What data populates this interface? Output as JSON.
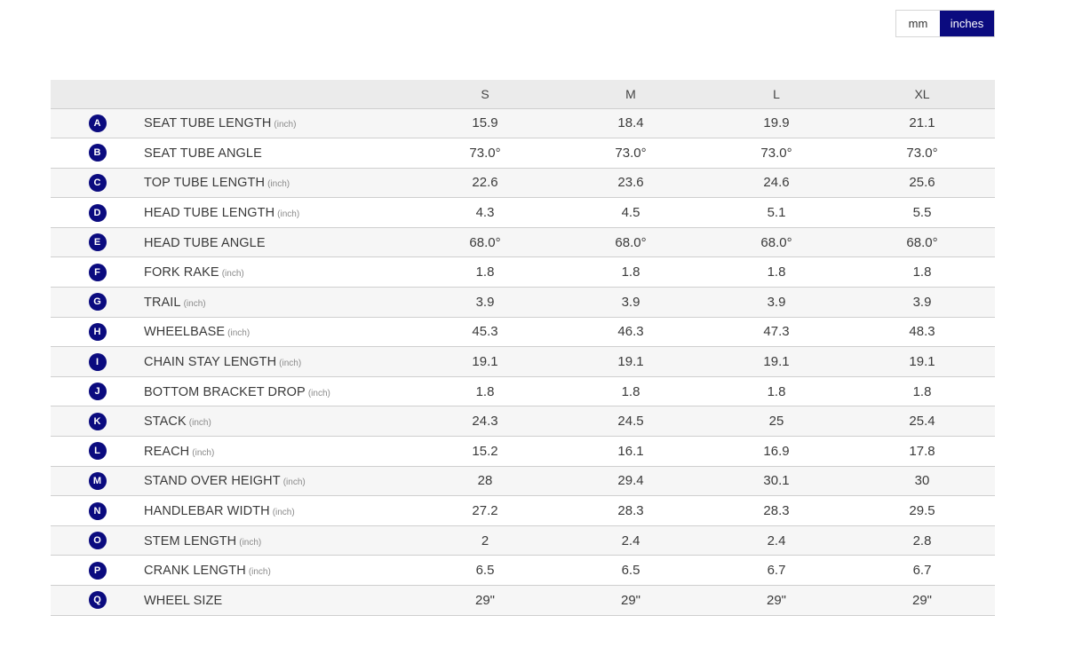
{
  "unit_toggle": {
    "mm_label": "mm",
    "inches_label": "inches",
    "selected": "inches"
  },
  "colors": {
    "accent": "#0b0b7f",
    "header_bg": "#ebebeb",
    "row_alt_bg": "#f6f6f6"
  },
  "table": {
    "columns": [
      "S",
      "M",
      "L",
      "XL"
    ],
    "rows": [
      {
        "letter": "A",
        "label": "SEAT TUBE LENGTH",
        "unit": "(inch)",
        "values": [
          "15.9",
          "18.4",
          "19.9",
          "21.1"
        ]
      },
      {
        "letter": "B",
        "label": "SEAT TUBE ANGLE",
        "unit": "",
        "values": [
          "73.0°",
          "73.0°",
          "73.0°",
          "73.0°"
        ]
      },
      {
        "letter": "C",
        "label": "TOP TUBE LENGTH",
        "unit": "(inch)",
        "values": [
          "22.6",
          "23.6",
          "24.6",
          "25.6"
        ]
      },
      {
        "letter": "D",
        "label": "HEAD TUBE LENGTH",
        "unit": "(inch)",
        "values": [
          "4.3",
          "4.5",
          "5.1",
          "5.5"
        ]
      },
      {
        "letter": "E",
        "label": "HEAD TUBE ANGLE",
        "unit": "",
        "values": [
          "68.0°",
          "68.0°",
          "68.0°",
          "68.0°"
        ]
      },
      {
        "letter": "F",
        "label": "FORK RAKE",
        "unit": "(inch)",
        "values": [
          "1.8",
          "1.8",
          "1.8",
          "1.8"
        ]
      },
      {
        "letter": "G",
        "label": "TRAIL",
        "unit": "(inch)",
        "values": [
          "3.9",
          "3.9",
          "3.9",
          "3.9"
        ]
      },
      {
        "letter": "H",
        "label": "WHEELBASE",
        "unit": "(inch)",
        "values": [
          "45.3",
          "46.3",
          "47.3",
          "48.3"
        ]
      },
      {
        "letter": "I",
        "label": "CHAIN STAY LENGTH",
        "unit": "(inch)",
        "values": [
          "19.1",
          "19.1",
          "19.1",
          "19.1"
        ]
      },
      {
        "letter": "J",
        "label": "BOTTOM BRACKET DROP",
        "unit": "(inch)",
        "values": [
          "1.8",
          "1.8",
          "1.8",
          "1.8"
        ]
      },
      {
        "letter": "K",
        "label": "STACK",
        "unit": "(inch)",
        "values": [
          "24.3",
          "24.5",
          "25",
          "25.4"
        ]
      },
      {
        "letter": "L",
        "label": "REACH",
        "unit": "(inch)",
        "values": [
          "15.2",
          "16.1",
          "16.9",
          "17.8"
        ]
      },
      {
        "letter": "M",
        "label": "STAND OVER HEIGHT",
        "unit": "(inch)",
        "values": [
          "28",
          "29.4",
          "30.1",
          "30"
        ]
      },
      {
        "letter": "N",
        "label": "HANDLEBAR WIDTH",
        "unit": "(inch)",
        "values": [
          "27.2",
          "28.3",
          "28.3",
          "29.5"
        ]
      },
      {
        "letter": "O",
        "label": "STEM LENGTH",
        "unit": "(inch)",
        "values": [
          "2",
          "2.4",
          "2.4",
          "2.8"
        ]
      },
      {
        "letter": "P",
        "label": "CRANK LENGTH",
        "unit": "(inch)",
        "values": [
          "6.5",
          "6.5",
          "6.7",
          "6.7"
        ]
      },
      {
        "letter": "Q",
        "label": "WHEEL SIZE",
        "unit": "",
        "values": [
          "29\"",
          "29\"",
          "29\"",
          "29\""
        ]
      }
    ]
  }
}
